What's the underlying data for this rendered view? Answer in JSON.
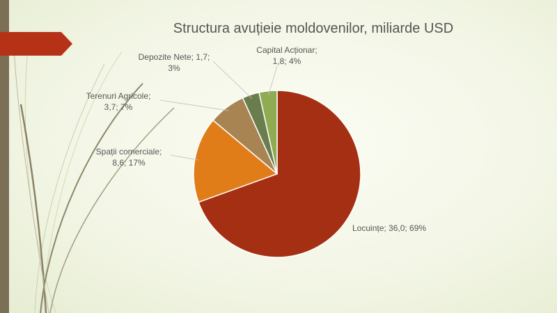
{
  "colors": {
    "locuinte": "#a52f12",
    "spatii": "#e07d19",
    "terenuri": "#a88453",
    "depozite": "#6a7d4d",
    "capital": "#8fac52",
    "banner": "#b63217",
    "leftbar": "#7b6f55"
  },
  "chart_data": {
    "type": "pie",
    "title": "Structura avuțieie moldovenilor, miliarde USD",
    "slices": [
      {
        "name": "Locuințe",
        "value": 36.0,
        "percent": 69,
        "label_lines": [
          "Locuințe; 36,0; 69%"
        ]
      },
      {
        "name": "Spații comerciale",
        "value": 8.6,
        "percent": 17,
        "label_lines": [
          "Spații comerciale;",
          "8,6; 17%"
        ]
      },
      {
        "name": "Terenuri Agricole",
        "value": 3.7,
        "percent": 7,
        "label_lines": [
          "Terenuri Agricole;",
          "3,7; 7%"
        ]
      },
      {
        "name": "Depozite Nete",
        "value": 1.7,
        "percent": 3,
        "label_lines": [
          "Depozite Nete; 1,7;",
          "3%"
        ]
      },
      {
        "name": "Capital Acționar",
        "value": 1.8,
        "percent": 4,
        "label_lines": [
          "Capital Acționar;",
          "1,8; 4%"
        ]
      }
    ]
  }
}
